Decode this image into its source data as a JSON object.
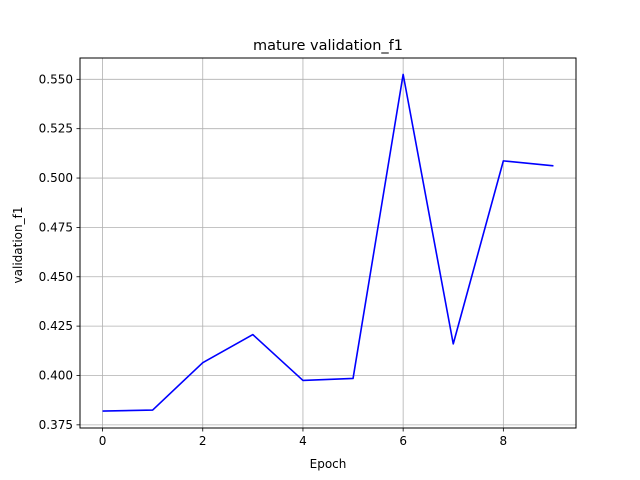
{
  "chart_data": {
    "type": "line",
    "title": "mature validation_f1",
    "xlabel": "Epoch",
    "ylabel": "validation_f1",
    "xlim": [
      -0.45,
      9.45
    ],
    "ylim": [
      0.3734,
      0.5608
    ],
    "xticks": [
      0,
      2,
      4,
      6,
      8
    ],
    "xtick_labels": [
      "0",
      "2",
      "4",
      "6",
      "8"
    ],
    "yticks": [
      0.375,
      0.4,
      0.425,
      0.45,
      0.475,
      0.5,
      0.525,
      0.55
    ],
    "ytick_labels": [
      "0.375",
      "0.400",
      "0.425",
      "0.450",
      "0.475",
      "0.500",
      "0.525",
      "0.550"
    ],
    "grid": true,
    "series": [
      {
        "color": "#0000ff",
        "x": [
          0,
          1,
          2,
          3,
          4,
          5,
          6,
          7,
          8,
          9
        ],
        "y": [
          0.382,
          0.3825,
          0.4065,
          0.4207,
          0.3975,
          0.3985,
          0.5525,
          0.416,
          0.5087,
          0.5062
        ]
      }
    ]
  }
}
